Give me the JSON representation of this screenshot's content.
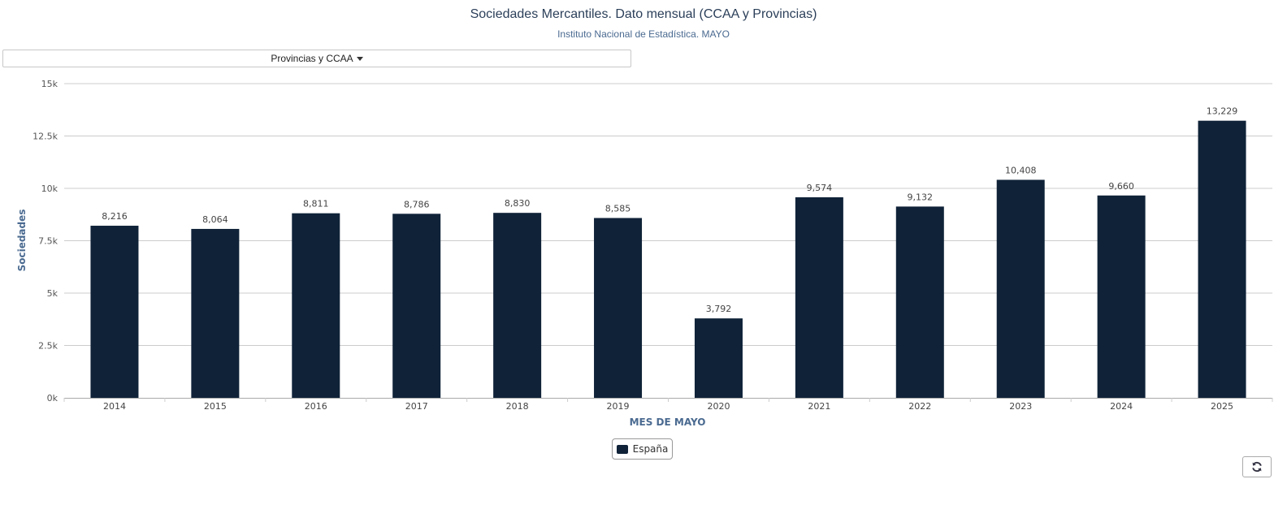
{
  "header": {
    "title": "Sociedades Mercantiles. Dato mensual (CCAA y Provincias)",
    "subtitle": "Instituto Nacional de Estadística. MAYO"
  },
  "selector": {
    "label": "Provincias y CCAA",
    "icon": "caret-down-icon"
  },
  "refresh": {
    "icon": "refresh-icon"
  },
  "colors": {
    "bar": "#0f2238",
    "axis_title": "#4a6a90",
    "grid": "#cccccc"
  },
  "chart_data": {
    "type": "bar",
    "categories": [
      "2014",
      "2015",
      "2016",
      "2017",
      "2018",
      "2019",
      "2020",
      "2021",
      "2022",
      "2023",
      "2024",
      "2025"
    ],
    "series": [
      {
        "name": "España",
        "values": [
          8216,
          8064,
          8811,
          8786,
          8830,
          8585,
          3792,
          9574,
          9132,
          10408,
          9660,
          13229
        ]
      }
    ],
    "data_labels": [
      "8,216",
      "8,064",
      "8,811",
      "8,786",
      "8,830",
      "8,585",
      "3,792",
      "9,574",
      "9,132",
      "10,408",
      "9,660",
      "13,229"
    ],
    "xlabel": "MES DE MAYO",
    "ylabel": "Sociedades",
    "ylim": [
      0,
      15000
    ],
    "yticks": [
      0,
      2500,
      5000,
      7500,
      10000,
      12500,
      15000
    ],
    "ytick_labels": [
      "0k",
      "2.5k",
      "5k",
      "7.5k",
      "10k",
      "12.5k",
      "15k"
    ],
    "grid": true,
    "legend_position": "bottom-center"
  }
}
